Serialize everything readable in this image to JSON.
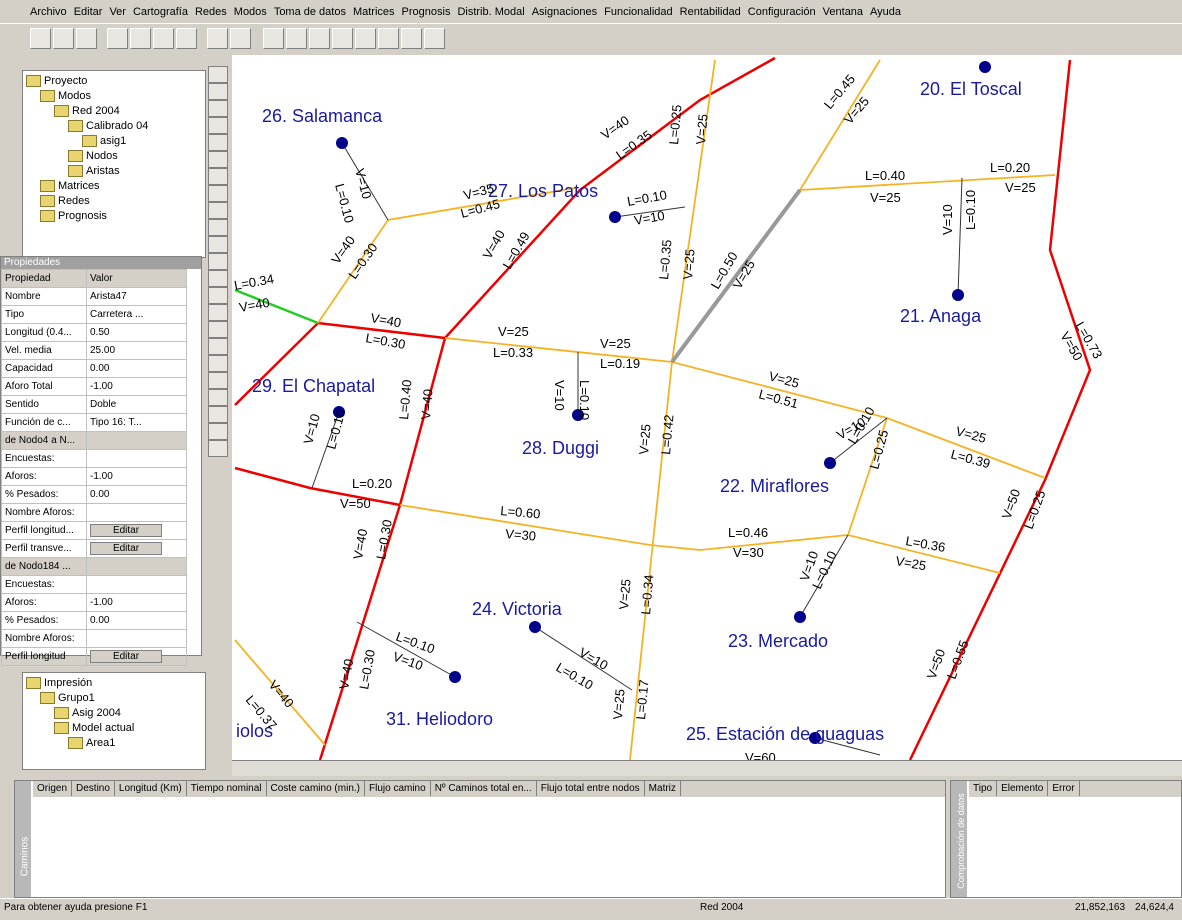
{
  "menu": [
    "Archivo",
    "Editar",
    "Ver",
    "Cartografía",
    "Redes",
    "Modos",
    "Toma de datos",
    "Matrices",
    "Prognosis",
    "Distrib. Modal",
    "Asignaciones",
    "Funcionalidad",
    "Rentabilidad",
    "Configuración",
    "Ventana",
    "Ayuda"
  ],
  "project_tree": [
    "Proyecto",
    "Modos",
    "Red 2004",
    "Calibrado 04",
    "asig1",
    "Nodos",
    "Aristas",
    "Matrices",
    "Redes",
    "Prognosis"
  ],
  "properties": {
    "title": "Propiedades",
    "header": [
      "Propiedad",
      "Valor"
    ],
    "rows": [
      {
        "name": "Nombre",
        "value": "Arista47"
      },
      {
        "name": "Tipo",
        "value": "Carretera ..."
      },
      {
        "name": "Longitud (0.4...",
        "value": "0.50"
      },
      {
        "name": "Vel. media",
        "value": "25.00"
      },
      {
        "name": "Capacidad",
        "value": "0.00"
      },
      {
        "name": "Aforo Total",
        "value": "-1.00"
      },
      {
        "name": "Sentido",
        "value": "Doble"
      },
      {
        "name": "Función de c...",
        "value": "Tipo 16: T..."
      },
      {
        "name": "de Nodo4 a N..."
      },
      {
        "name": "Encuestas:"
      },
      {
        "name": "Aforos:",
        "value": "-1.00"
      },
      {
        "name": "% Pesados:",
        "value": "0.00"
      },
      {
        "name": "Nombre Aforos:"
      },
      {
        "name": "Perfil longitud...",
        "button": "Editar"
      },
      {
        "name": "Perfil transve...",
        "button": "Editar"
      },
      {
        "name": "de Nodo184 ..."
      },
      {
        "name": "Encuestas:"
      },
      {
        "name": "Aforos:",
        "value": "-1.00"
      },
      {
        "name": "% Pesados:",
        "value": "0.00"
      },
      {
        "name": "Nombre Aforos:"
      },
      {
        "name": "Perfil longitud",
        "button": "Editar"
      }
    ]
  },
  "print_tree": [
    "Impresión",
    "Grupo1",
    "Asig 2004",
    "Model actual",
    "Area1"
  ],
  "map": {
    "nodes": [
      "20. El Toscal",
      "26. Salamanca",
      "27. Los Patos",
      "21. Anaga",
      "29. El Chapatal",
      "28. Duggi",
      "22. Miraflores",
      "24. Victoria",
      "23. Mercado",
      "31. Heliodoro",
      "25. Estación de guaguas",
      "iolos"
    ],
    "edge_labels": [
      "V=40",
      "L=0.35",
      "L=0.25",
      "V=25",
      "L=0.45",
      "V=25",
      "V=10",
      "L=0.10",
      "V=35",
      "L=0.45",
      "L=0.10",
      "V=10",
      "L=0.40",
      "V=25",
      "L=0.20",
      "V=25",
      "V=10",
      "L=0.10",
      "V=40",
      "L=0.30",
      "V=40",
      "L=0.49",
      "L=0.35",
      "V=25",
      "L=0.50",
      "V=25",
      "L=0.34",
      "V=40",
      "L=0.73",
      "V=50",
      "V=40",
      "L=0.30",
      "V=25",
      "L=0.33",
      "V=25",
      "L=0.19",
      "V=10",
      "L=0.10",
      "V=25",
      "L=0.51",
      "L=0.40",
      "V=40",
      "V=10",
      "L=0.10",
      "V=25",
      "L=0.39",
      "V=10",
      "L=0.10",
      "L=0.25",
      "V=25",
      "L=0.42",
      "L=0.20",
      "V=50",
      "L=0.60",
      "V=30",
      "V=50",
      "L=0.25",
      "L=0.46",
      "V=30",
      "L=0.36",
      "V=25",
      "V=40",
      "L=0.30",
      "V=10",
      "L=0.10",
      "V=25",
      "L=0.34",
      "L=0.10",
      "V=10",
      "V=10",
      "L=0.10",
      "V=50",
      "L=0.55",
      "V=40",
      "L=0.37",
      "V=40",
      "L=0.30",
      "V=25",
      "L=0.17",
      "V=60"
    ]
  },
  "paths_panel": {
    "title": "Caminos",
    "columns": [
      "Origen",
      "Destino",
      "Longitud (Km)",
      "Tiempo nominal",
      "Coste camino (min.)",
      "Flujo camino",
      "Nº Caminos total en...",
      "Flujo total entre nodos",
      "Matriz"
    ]
  },
  "errors_panel": {
    "title": "Comprobación de datos",
    "columns": [
      "Tipo",
      "Elemento",
      "Error"
    ]
  },
  "status": [
    "Para obtener ayuda presione F1",
    "Red 2004",
    "21,852,163",
    "24,624,4"
  ]
}
